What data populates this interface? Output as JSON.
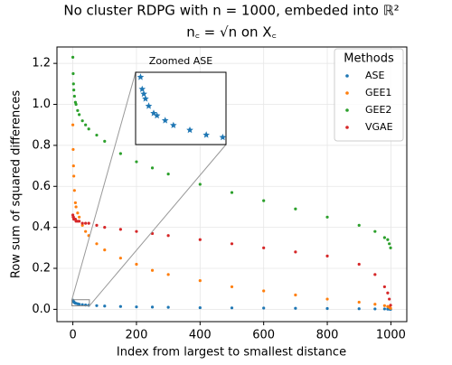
{
  "chart_data": {
    "type": "scatter",
    "title": [
      "No cluster RDPG with n = 1000, embeded into ℝ²",
      "n꜀ = √n on X꜀"
    ],
    "x_label": "Index from largest to smallest distance",
    "y_label": "Row sum of squared differences",
    "xlim": [
      -50,
      1050
    ],
    "ylim": [
      -0.06,
      1.28
    ],
    "xticks": [
      0,
      200,
      400,
      600,
      800,
      1000
    ],
    "yticks": [
      {
        "value": 0,
        "label": "0.0"
      },
      {
        "value": 0.2,
        "label": "0.2"
      },
      {
        "value": 0.4,
        "label": "0.4"
      },
      {
        "value": 0.6,
        "label": "0.6"
      },
      {
        "value": 0.8,
        "label": "0.8"
      },
      {
        "value": 1,
        "label": "1.0"
      },
      {
        "value": 1.2,
        "label": "1.2"
      }
    ],
    "grid": true,
    "legend": {
      "title": "Methods",
      "loc": "upper right"
    },
    "x": [
      0,
      1,
      2,
      3,
      5,
      8,
      10,
      15,
      20,
      30,
      40,
      50,
      75,
      100,
      150,
      200,
      250,
      300,
      400,
      500,
      600,
      700,
      800,
      900,
      950,
      980,
      990,
      995,
      999
    ],
    "series": [
      {
        "name": "ASE",
        "color": "#1f77b4",
        "values": [
          0.045,
          0.04,
          0.038,
          0.036,
          0.033,
          0.03,
          0.029,
          0.027,
          0.025,
          0.023,
          0.021,
          0.02,
          0.018,
          0.016,
          0.014,
          0.012,
          0.011,
          0.01,
          0.008,
          0.007,
          0.006,
          0.005,
          0.004,
          0.003,
          0.002,
          0.002,
          0.001,
          0.001,
          0
        ]
      },
      {
        "name": "GEE1",
        "color": "#ff7f0e",
        "values": [
          0.9,
          0.78,
          0.7,
          0.65,
          0.58,
          0.52,
          0.5,
          0.47,
          0.45,
          0.41,
          0.38,
          0.36,
          0.32,
          0.29,
          0.25,
          0.22,
          0.19,
          0.17,
          0.14,
          0.11,
          0.09,
          0.07,
          0.05,
          0.035,
          0.025,
          0.018,
          0.014,
          0.01,
          0.005
        ]
      },
      {
        "name": "GEE2",
        "color": "#2ca02c",
        "values": [
          1.23,
          1.15,
          1.1,
          1.07,
          1.04,
          1.01,
          1,
          0.97,
          0.95,
          0.92,
          0.9,
          0.88,
          0.85,
          0.82,
          0.76,
          0.72,
          0.69,
          0.66,
          0.61,
          0.57,
          0.53,
          0.49,
          0.45,
          0.41,
          0.38,
          0.35,
          0.34,
          0.32,
          0.3
        ]
      },
      {
        "name": "VGAE",
        "color": "#d62728",
        "values": [
          0.46,
          0.45,
          0.45,
          0.44,
          0.44,
          0.44,
          0.43,
          0.43,
          0.43,
          0.42,
          0.42,
          0.42,
          0.41,
          0.4,
          0.39,
          0.38,
          0.37,
          0.36,
          0.34,
          0.32,
          0.3,
          0.28,
          0.26,
          0.22,
          0.17,
          0.11,
          0.08,
          0.05,
          0.02
        ]
      }
    ],
    "inset": {
      "title": "Zoomed ASE",
      "series": 0,
      "xlim": [
        -3,
        52
      ],
      "ylim": [
        0.017,
        0.047
      ]
    }
  }
}
